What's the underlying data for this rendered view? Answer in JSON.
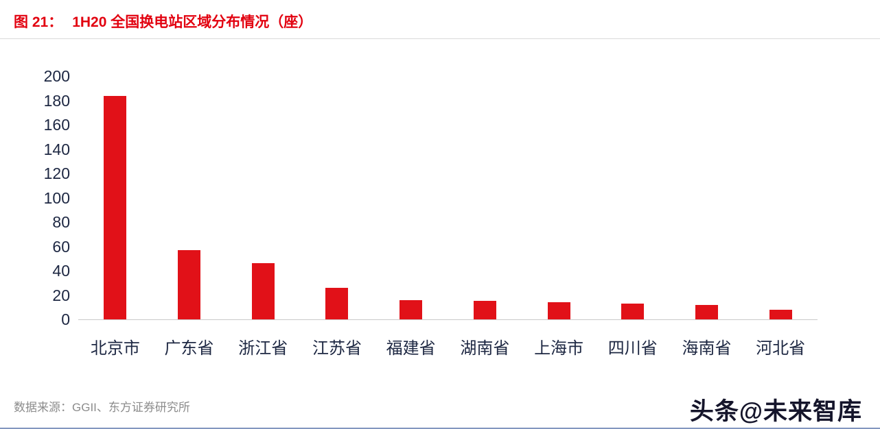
{
  "header": {
    "figure_label": "图 21：",
    "title": "1H20 全国换电站区域分布情况（座）",
    "title_color": "#e2000f"
  },
  "chart_data": {
    "type": "bar",
    "title": "1H20 全国换电站区域分布情况（座）",
    "categories": [
      "北京市",
      "广东省",
      "浙江省",
      "江苏省",
      "福建省",
      "湖南省",
      "上海市",
      "四川省",
      "海南省",
      "河北省"
    ],
    "values": [
      183,
      57,
      46,
      26,
      16,
      15,
      14,
      13,
      12,
      8
    ],
    "xlabel": "",
    "ylabel": "",
    "ylim": [
      0,
      200
    ],
    "ytick_step": 20,
    "yticks": [
      200,
      180,
      160,
      140,
      120,
      100,
      80,
      60,
      40,
      20,
      0
    ],
    "bar_color": "#e11118",
    "axis_label_color": "#1d2742",
    "grid": false,
    "legend": false
  },
  "footer": {
    "source": "数据来源：GGII、东方证券研究所",
    "watermark": "头条@未来智库"
  }
}
